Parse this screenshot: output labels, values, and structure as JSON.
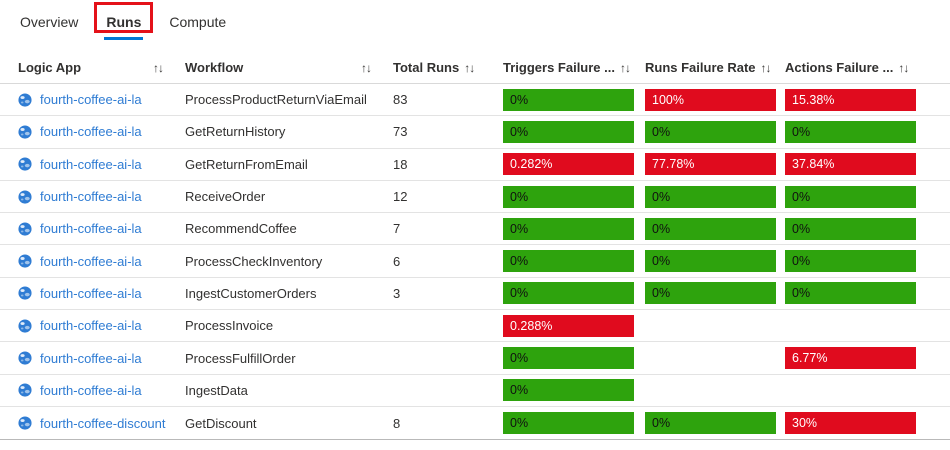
{
  "colors": {
    "accent": "#0078d4",
    "green": "#2ea30d",
    "red": "#e00b1e",
    "link": "#2f7cd3",
    "annotation": "#e41119"
  },
  "tabs": {
    "items": [
      {
        "label": "Overview",
        "active": false
      },
      {
        "label": "Runs",
        "active": true,
        "highlighted": true
      },
      {
        "label": "Compute",
        "active": false
      }
    ]
  },
  "table": {
    "sort_icon": "↑↓",
    "columns": [
      "Logic App",
      "Workflow",
      "Total Runs",
      "Triggers Failure ...",
      "Runs Failure Rate",
      "Actions Failure ..."
    ],
    "rows": [
      {
        "logic_app": "fourth-coffee-ai-la",
        "workflow": "ProcessProductReturnViaEmail",
        "total_runs": "83",
        "triggers_failure": {
          "text": "0%",
          "status": "green"
        },
        "runs_failure": {
          "text": "100%",
          "status": "red"
        },
        "actions_failure": {
          "text": "15.38%",
          "status": "red"
        }
      },
      {
        "logic_app": "fourth-coffee-ai-la",
        "workflow": "GetReturnHistory",
        "total_runs": "73",
        "triggers_failure": {
          "text": "0%",
          "status": "green"
        },
        "runs_failure": {
          "text": "0%",
          "status": "green"
        },
        "actions_failure": {
          "text": "0%",
          "status": "green"
        }
      },
      {
        "logic_app": "fourth-coffee-ai-la",
        "workflow": "GetReturnFromEmail",
        "total_runs": "18",
        "triggers_failure": {
          "text": "0.282%",
          "status": "red"
        },
        "runs_failure": {
          "text": "77.78%",
          "status": "red"
        },
        "actions_failure": {
          "text": "37.84%",
          "status": "red"
        }
      },
      {
        "logic_app": "fourth-coffee-ai-la",
        "workflow": "ReceiveOrder",
        "total_runs": "12",
        "triggers_failure": {
          "text": "0%",
          "status": "green"
        },
        "runs_failure": {
          "text": "0%",
          "status": "green"
        },
        "actions_failure": {
          "text": "0%",
          "status": "green"
        }
      },
      {
        "logic_app": "fourth-coffee-ai-la",
        "workflow": "RecommendCoffee",
        "total_runs": "7",
        "triggers_failure": {
          "text": "0%",
          "status": "green"
        },
        "runs_failure": {
          "text": "0%",
          "status": "green"
        },
        "actions_failure": {
          "text": "0%",
          "status": "green"
        }
      },
      {
        "logic_app": "fourth-coffee-ai-la",
        "workflow": "ProcessCheckInventory",
        "total_runs": "6",
        "triggers_failure": {
          "text": "0%",
          "status": "green"
        },
        "runs_failure": {
          "text": "0%",
          "status": "green"
        },
        "actions_failure": {
          "text": "0%",
          "status": "green"
        }
      },
      {
        "logic_app": "fourth-coffee-ai-la",
        "workflow": "IngestCustomerOrders",
        "total_runs": "3",
        "triggers_failure": {
          "text": "0%",
          "status": "green"
        },
        "runs_failure": {
          "text": "0%",
          "status": "green"
        },
        "actions_failure": {
          "text": "0%",
          "status": "green"
        }
      },
      {
        "logic_app": "fourth-coffee-ai-la",
        "workflow": "ProcessInvoice",
        "total_runs": "",
        "triggers_failure": {
          "text": "0.288%",
          "status": "red"
        },
        "runs_failure": null,
        "actions_failure": null
      },
      {
        "logic_app": "fourth-coffee-ai-la",
        "workflow": "ProcessFulfillOrder",
        "total_runs": "",
        "triggers_failure": {
          "text": "0%",
          "status": "green"
        },
        "runs_failure": null,
        "actions_failure": {
          "text": "6.77%",
          "status": "red"
        }
      },
      {
        "logic_app": "fourth-coffee-ai-la",
        "workflow": "IngestData",
        "total_runs": "",
        "triggers_failure": {
          "text": "0%",
          "status": "green"
        },
        "runs_failure": null,
        "actions_failure": null
      },
      {
        "logic_app": "fourth-coffee-discount",
        "workflow": "GetDiscount",
        "total_runs": "8",
        "triggers_failure": {
          "text": "0%",
          "status": "green"
        },
        "runs_failure": {
          "text": "0%",
          "status": "green"
        },
        "actions_failure": {
          "text": "30%",
          "status": "red"
        }
      }
    ]
  }
}
